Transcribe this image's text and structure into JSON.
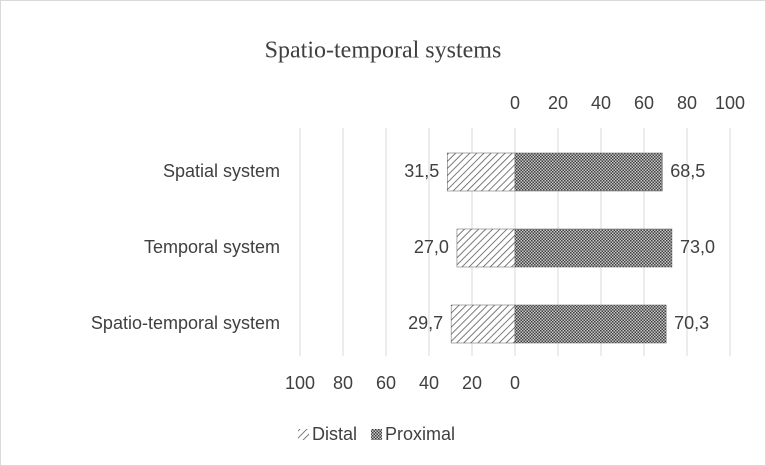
{
  "chart_data": {
    "type": "diverging-bar",
    "title": "Spatio-temporal systems",
    "categories": [
      "Spatial system",
      "Temporal system",
      "Spatio-temporal system"
    ],
    "series": [
      {
        "name": "Distal",
        "color": "#595959",
        "pattern": "hatch",
        "values": [
          31.5,
          27.0,
          29.7
        ],
        "value_labels": [
          "31,5",
          "27,0",
          "29,7"
        ]
      },
      {
        "name": "Proximal",
        "color": "#595959",
        "pattern": "dots",
        "axis": "x2",
        "values": [
          68.5,
          73.0,
          70.3
        ],
        "value_labels": [
          "68,5",
          "73,0",
          "70,3"
        ]
      }
    ],
    "xlim": [
      0,
      100
    ],
    "xticks": [
      100,
      80,
      60,
      40,
      20,
      0
    ],
    "x_reversed": true,
    "x2lim": [
      0,
      100
    ],
    "x2ticks": [
      0,
      20,
      40,
      60,
      80,
      100
    ],
    "grid": true,
    "legend": "bottom"
  }
}
